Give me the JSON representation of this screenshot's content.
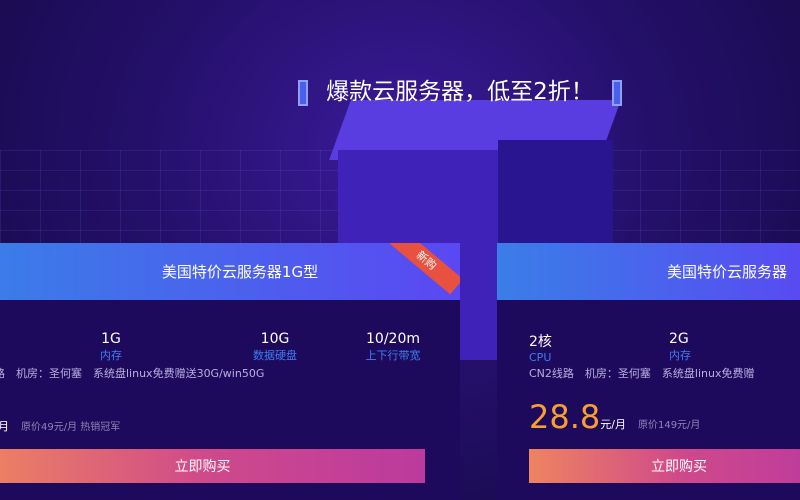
{
  "banner": {
    "title": "爆款云服务器，低至2折！"
  },
  "cards": [
    {
      "title": "美国特价云服务器1G型",
      "badge": "新购",
      "specs": [
        {
          "value": "1G",
          "label": "内存"
        },
        {
          "value": "10G",
          "label": "数据硬盘"
        },
        {
          "value": "10/20m",
          "label": "上下行带宽"
        }
      ],
      "info": "路　机房：圣何塞　系统盘linux免费赠送30G/win50G",
      "price_unit": "月",
      "original": "原价49元/月 热销冠军",
      "buy": "立即购买"
    },
    {
      "title": "美国特价云服务器",
      "specs": [
        {
          "value": "2核",
          "label": "CPU"
        },
        {
          "value": "2G",
          "label": "内存"
        }
      ],
      "info": "CN2线路　机房：圣何塞　系统盘linux免费赠",
      "price": "28.8",
      "price_unit": "元/月",
      "original": "原价149元/月",
      "buy": "立即购买"
    }
  ],
  "colors": {
    "accent": "#f7a030",
    "header": "#3a7ee8",
    "badge": "#e85040"
  }
}
